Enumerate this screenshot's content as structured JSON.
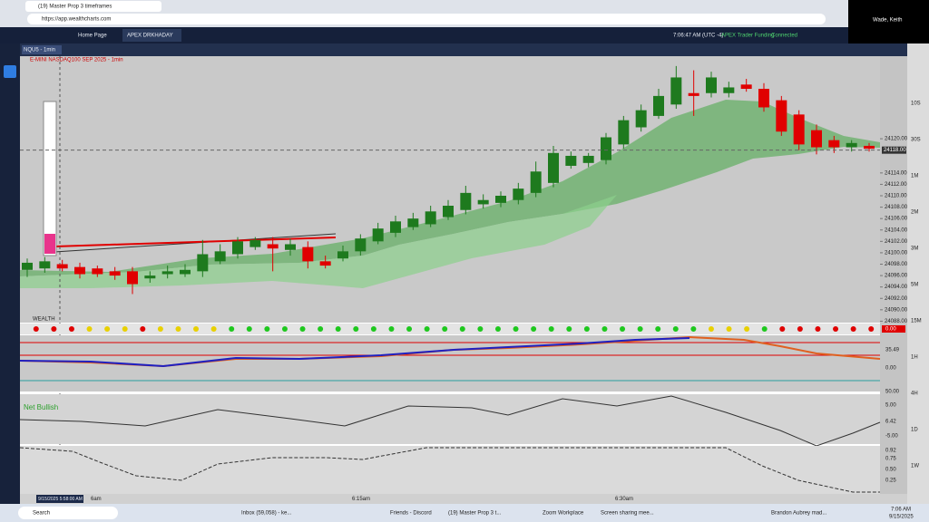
{
  "browser": {
    "tab_title": "(19) Master Prop 3 timeframes",
    "url": "https://app.wealthcharts.com"
  },
  "zoom_overlay": {
    "user": "Wade, Keith"
  },
  "app_header": {
    "tabs": [
      "Home Page",
      "APEX DRKHADAY"
    ],
    "clock": "7:06:47 AM (UTC -4)",
    "account": "APEX Trader Funding",
    "status": "Connected"
  },
  "symbol_tab": "NQU5 - 1min",
  "chart_header": "E-MINI NASDAQ100 SEP 2025 - 1min",
  "price_chart": {
    "ylim": [
      24086,
      24134
    ],
    "yticks": [
      {
        "value": 24088,
        "label": "24088.00"
      },
      {
        "value": 24090,
        "label": "24090.00"
      },
      {
        "value": 24092,
        "label": "24092.00"
      },
      {
        "value": 24094,
        "label": "24094.00"
      },
      {
        "value": 24096,
        "label": "24096.00"
      },
      {
        "value": 24098,
        "label": "24098.00"
      },
      {
        "value": 24100,
        "label": "24100.00"
      },
      {
        "value": 24102,
        "label": "24102.00"
      },
      {
        "value": 24104,
        "label": "24104.00"
      },
      {
        "value": 24106,
        "label": "24106.00"
      },
      {
        "value": 24108,
        "label": "24108.00"
      },
      {
        "value": 24110,
        "label": "24110.00"
      },
      {
        "value": 24112,
        "label": "24112.00"
      },
      {
        "value": 24114,
        "label": "24114.00"
      },
      {
        "value": 24120,
        "label": "24120.00"
      }
    ],
    "last_price": {
      "value": 24118,
      "label": "24118.00"
    },
    "up_color": "#1e7a1e",
    "down_color": "#e00000",
    "candles": [
      {
        "open": 24097.0,
        "high": 24099.0,
        "low": 24095.75,
        "close": 24098.25
      },
      {
        "open": 24097.25,
        "high": 24099.25,
        "low": 24096.5,
        "close": 24098.5
      },
      {
        "open": 24098.0,
        "high": 24098.75,
        "low": 24096.75,
        "close": 24097.25
      },
      {
        "open": 24097.5,
        "high": 24098.25,
        "low": 24095.5,
        "close": 24096.25
      },
      {
        "open": 24097.25,
        "high": 24097.75,
        "low": 24095.75,
        "close": 24096.25
      },
      {
        "open": 24096.75,
        "high": 24097.5,
        "low": 24095.25,
        "close": 24096.0
      },
      {
        "open": 24096.75,
        "high": 24097.5,
        "low": 24092.75,
        "close": 24094.5
      },
      {
        "open": 24095.5,
        "high": 24096.75,
        "low": 24094.75,
        "close": 24096.0
      },
      {
        "open": 24096.25,
        "high": 24097.75,
        "low": 24095.5,
        "close": 24096.75
      },
      {
        "open": 24096.25,
        "high": 24098.0,
        "low": 24095.75,
        "close": 24097.0
      },
      {
        "open": 24096.75,
        "high": 24102.25,
        "low": 24095.75,
        "close": 24099.75
      },
      {
        "open": 24098.5,
        "high": 24101.5,
        "low": 24098.0,
        "close": 24100.25
      },
      {
        "open": 24099.75,
        "high": 24102.75,
        "low": 24099.0,
        "close": 24102.0
      },
      {
        "open": 24101.0,
        "high": 24102.75,
        "low": 24100.5,
        "close": 24102.25
      },
      {
        "open": 24101.5,
        "high": 24102.75,
        "low": 24096.75,
        "close": 24100.75
      },
      {
        "open": 24100.5,
        "high": 24102.5,
        "low": 24099.5,
        "close": 24101.5
      },
      {
        "open": 24101.0,
        "high": 24102.0,
        "low": 24097.25,
        "close": 24098.5
      },
      {
        "open": 24098.5,
        "high": 24099.5,
        "low": 24097.25,
        "close": 24097.75
      },
      {
        "open": 24099.0,
        "high": 24101.25,
        "low": 24098.5,
        "close": 24100.25
      },
      {
        "open": 24100.25,
        "high": 24103.25,
        "low": 24099.5,
        "close": 24102.5
      },
      {
        "open": 24102.0,
        "high": 24105.25,
        "low": 24101.5,
        "close": 24104.25
      },
      {
        "open": 24103.5,
        "high": 24106.5,
        "low": 24102.75,
        "close": 24105.5
      },
      {
        "open": 24104.5,
        "high": 24107.0,
        "low": 24104.0,
        "close": 24106.0
      },
      {
        "open": 24105.0,
        "high": 24108.25,
        "low": 24104.5,
        "close": 24107.25
      },
      {
        "open": 24106.25,
        "high": 24109.25,
        "low": 24105.75,
        "close": 24108.25
      },
      {
        "open": 24107.5,
        "high": 24111.75,
        "low": 24106.75,
        "close": 24110.5
      },
      {
        "open": 24108.5,
        "high": 24110.25,
        "low": 24107.75,
        "close": 24109.25
      },
      {
        "open": 24108.75,
        "high": 24110.75,
        "low": 24108.0,
        "close": 24110.0
      },
      {
        "open": 24109.25,
        "high": 24112.25,
        "low": 24108.5,
        "close": 24111.25
      },
      {
        "open": 24110.5,
        "high": 24116.0,
        "low": 24109.75,
        "close": 24114.25
      },
      {
        "open": 24112.25,
        "high": 24118.75,
        "low": 24111.5,
        "close": 24117.5
      },
      {
        "open": 24115.25,
        "high": 24117.75,
        "low": 24114.75,
        "close": 24117.0
      },
      {
        "open": 24115.75,
        "high": 24117.5,
        "low": 24115.0,
        "close": 24117.0
      },
      {
        "open": 24116.25,
        "high": 24121.0,
        "low": 24115.5,
        "close": 24120.25
      },
      {
        "open": 24119.0,
        "high": 24124.0,
        "low": 24118.25,
        "close": 24123.25
      },
      {
        "open": 24122.0,
        "high": 24126.0,
        "low": 24121.25,
        "close": 24125.0
      },
      {
        "open": 24124.0,
        "high": 24128.75,
        "low": 24123.5,
        "close": 24127.5
      },
      {
        "open": 24126.0,
        "high": 24132.75,
        "low": 24125.25,
        "close": 24130.75
      },
      {
        "open": 24128.0,
        "high": 24132.0,
        "low": 24124.0,
        "close": 24127.5
      },
      {
        "open": 24128.0,
        "high": 24131.75,
        "low": 24127.25,
        "close": 24130.75
      },
      {
        "open": 24128.0,
        "high": 24130.0,
        "low": 24127.25,
        "close": 24129.0
      },
      {
        "open": 24129.5,
        "high": 24130.5,
        "low": 24128.25,
        "close": 24128.75
      },
      {
        "open": 24128.75,
        "high": 24129.75,
        "low": 24124.75,
        "close": 24125.5
      },
      {
        "open": 24126.75,
        "high": 24127.5,
        "low": 24120.5,
        "close": 24121.25
      },
      {
        "open": 24124.25,
        "high": 24125.0,
        "low": 24118.0,
        "close": 24119.0
      },
      {
        "open": 24121.5,
        "high": 24122.5,
        "low": 24117.25,
        "close": 24118.5
      },
      {
        "open": 24119.75,
        "high": 24120.5,
        "low": 24117.5,
        "close": 24118.5
      },
      {
        "open": 24118.5,
        "high": 24119.75,
        "low": 24117.75,
        "close": 24119.25
      },
      {
        "open": 24118.75,
        "high": 24119.25,
        "low": 24117.75,
        "close": 24118.25
      }
    ]
  },
  "signal_row": {
    "label": "WEALTH",
    "value": "0.00",
    "colors": [
      "#e00000",
      "#e00000",
      "#e00000",
      "#e8d000",
      "#e8d000",
      "#e8d000",
      "#e00000",
      "#e8d000",
      "#e8d000",
      "#e8d000",
      "#e8d000",
      "#1ec81e",
      "#1ec81e",
      "#1ec81e",
      "#1ec81e",
      "#1ec81e",
      "#1ec81e",
      "#1ec81e",
      "#1ec81e",
      "#1ec81e",
      "#1ec81e",
      "#1ec81e",
      "#1ec81e",
      "#1ec81e",
      "#1ec81e",
      "#1ec81e",
      "#1ec81e",
      "#1ec81e",
      "#1ec81e",
      "#1ec81e",
      "#1ec81e",
      "#1ec81e",
      "#1ec81e",
      "#1ec81e",
      "#1ec81e",
      "#1ec81e",
      "#1ec81e",
      "#1ec81e",
      "#e8d000",
      "#e8d000",
      "#e8d000",
      "#1ec81e",
      "#e00000",
      "#e00000",
      "#e00000",
      "#e00000",
      "#e00000",
      "#e00000"
    ]
  },
  "oscillator": {
    "labels": [
      "35.49",
      "0.00",
      "50.00"
    ]
  },
  "momentum": {
    "badge": "Net Bullish",
    "labels": [
      "5.00",
      "6.42",
      "-5.00"
    ]
  },
  "stochastic": {
    "labels": [
      "0.92",
      "0.75",
      "0.50",
      "0.25"
    ]
  },
  "time_axis": {
    "cursor": "9/15/2025 5:58:00 AM",
    "labels": [
      "6am",
      "6:15am",
      "6:30am"
    ]
  },
  "timeframes": [
    "10S",
    "30S",
    "1M",
    "2M",
    "3M",
    "5M",
    "15M",
    "1H",
    "4H",
    "1D",
    "1W"
  ],
  "taskbar": {
    "search": "Search",
    "apps": [
      "Inbox (59,058) - ke...",
      "Friends - Discord",
      "(19) Master Prop 3 t...",
      "Zoom Workplace",
      "Screen sharing mee..."
    ],
    "news": "Brandon Aubrey mad...",
    "time": "7:06 AM",
    "date": "9/15/2025"
  }
}
